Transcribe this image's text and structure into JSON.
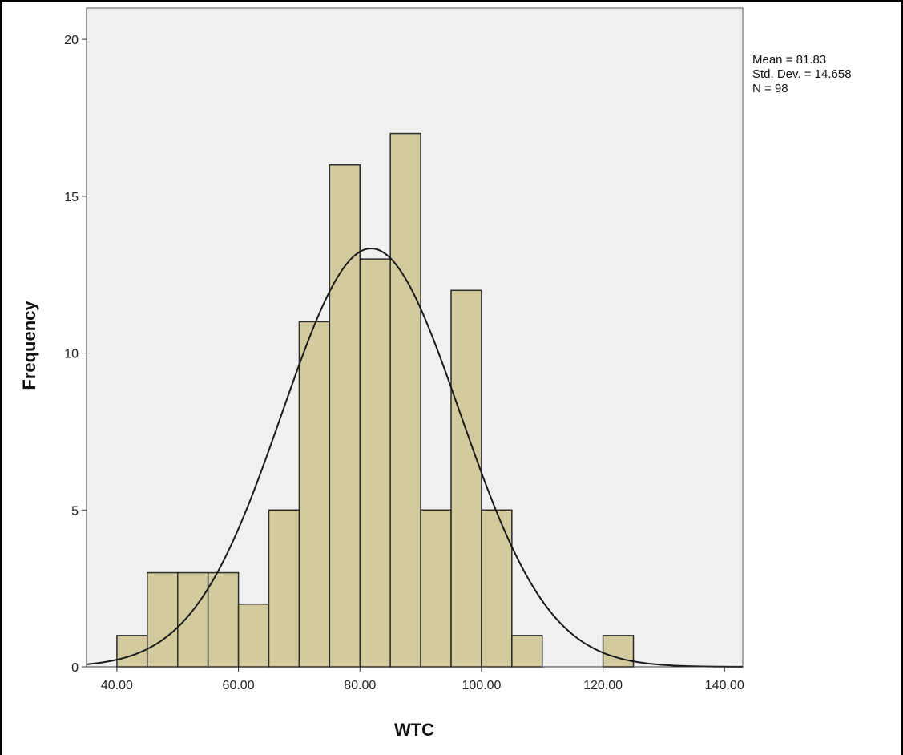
{
  "chart_data": {
    "type": "bar",
    "subtype": "histogram",
    "title": "",
    "xlabel": "WTC",
    "ylabel": "Frequency",
    "xlim": [
      35,
      143
    ],
    "ylim": [
      0,
      21
    ],
    "x_ticks": [
      40,
      60,
      80,
      100,
      120,
      140
    ],
    "x_tick_labels": [
      "40.00",
      "60.00",
      "80.00",
      "100.00",
      "120.00",
      "140.00"
    ],
    "y_ticks": [
      0,
      5,
      10,
      15,
      20
    ],
    "y_tick_labels": [
      "0",
      "5",
      "10",
      "15",
      "20"
    ],
    "bin_width": 5,
    "bins": [
      {
        "start": 40,
        "end": 45,
        "value": 1
      },
      {
        "start": 45,
        "end": 50,
        "value": 3
      },
      {
        "start": 50,
        "end": 55,
        "value": 3
      },
      {
        "start": 55,
        "end": 60,
        "value": 3
      },
      {
        "start": 60,
        "end": 65,
        "value": 2
      },
      {
        "start": 65,
        "end": 70,
        "value": 5
      },
      {
        "start": 70,
        "end": 75,
        "value": 11
      },
      {
        "start": 75,
        "end": 80,
        "value": 16
      },
      {
        "start": 80,
        "end": 85,
        "value": 13
      },
      {
        "start": 85,
        "end": 90,
        "value": 17
      },
      {
        "start": 90,
        "end": 95,
        "value": 5
      },
      {
        "start": 95,
        "end": 100,
        "value": 12
      },
      {
        "start": 100,
        "end": 105,
        "value": 5
      },
      {
        "start": 105,
        "end": 110,
        "value": 1
      },
      {
        "start": 120,
        "end": 125,
        "value": 1
      }
    ],
    "normal_curve": {
      "mean": 81.83,
      "std": 14.658,
      "n": 98
    },
    "stats_lines": [
      "Mean = 81.83",
      "Std. Dev. = 14.658",
      "N = 98"
    ],
    "grid": false,
    "colors": {
      "bar_fill": "#d3cb9d",
      "bar_stroke": "#2b2b2b",
      "plot_background": "#f0f0f0",
      "curve": "#1a1a1a"
    }
  }
}
